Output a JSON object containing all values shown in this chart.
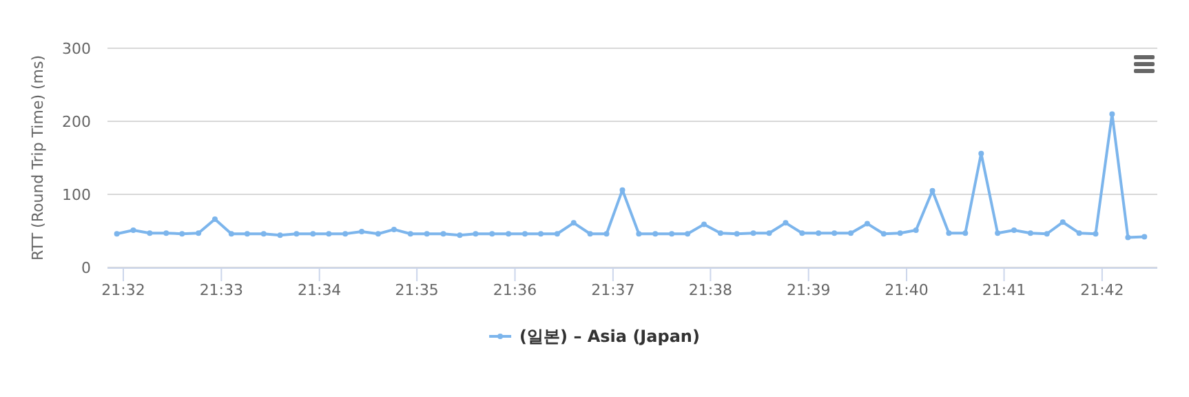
{
  "chart_data": {
    "type": "line",
    "ylabel": "RTT (Round Trip Time) (ms)",
    "xlim": [
      21.5306,
      21.7094
    ],
    "ylim": [
      0,
      300
    ],
    "yticks": [
      0,
      100,
      200,
      300
    ],
    "xticks": [
      {
        "value": 21.5333,
        "label": "21:32"
      },
      {
        "value": 21.55,
        "label": "21:33"
      },
      {
        "value": 21.5667,
        "label": "21:34"
      },
      {
        "value": 21.5833,
        "label": "21:35"
      },
      {
        "value": 21.6,
        "label": "21:36"
      },
      {
        "value": 21.6167,
        "label": "21:37"
      },
      {
        "value": 21.6333,
        "label": "21:38"
      },
      {
        "value": 21.65,
        "label": "21:39"
      },
      {
        "value": 21.6667,
        "label": "21:40"
      },
      {
        "value": 21.6833,
        "label": "21:41"
      },
      {
        "value": 21.7,
        "label": "21:42"
      }
    ],
    "grid": "y",
    "legend": "bottom",
    "marker": "circle",
    "line_style": "solid",
    "x": [
      21.5322,
      21.535,
      21.5378,
      21.5406,
      21.5433,
      21.5461,
      21.5489,
      21.5517,
      21.5544,
      21.5572,
      21.56,
      21.5628,
      21.5656,
      21.5683,
      21.5711,
      21.5739,
      21.5767,
      21.5794,
      21.5822,
      21.585,
      21.5878,
      21.5906,
      21.5933,
      21.5961,
      21.5989,
      21.6017,
      21.6044,
      21.6072,
      21.61,
      21.6128,
      21.6156,
      21.6183,
      21.6211,
      21.6239,
      21.6267,
      21.6294,
      21.6322,
      21.635,
      21.6378,
      21.6406,
      21.6433,
      21.6461,
      21.6489,
      21.6517,
      21.6544,
      21.6572,
      21.66,
      21.6628,
      21.6656,
      21.6683,
      21.6711,
      21.6739,
      21.6767,
      21.6794,
      21.6822,
      21.685,
      21.6878,
      21.6906,
      21.6933,
      21.6961,
      21.6989,
      21.7017,
      21.7044,
      21.7072
    ],
    "series": [
      {
        "name": "(일본) – Asia (Japan)",
        "color": "#7cb5ec",
        "values": [
          46,
          51,
          47,
          47,
          46,
          47,
          66,
          46,
          46,
          46,
          44,
          46,
          46,
          46,
          46,
          49,
          46,
          52,
          46,
          46,
          46,
          44,
          46,
          46,
          46,
          46,
          46,
          46,
          61,
          46,
          46,
          106,
          46,
          46,
          46,
          46,
          59,
          47,
          46,
          47,
          47,
          61,
          47,
          47,
          47,
          47,
          60,
          46,
          47,
          51,
          105,
          47,
          47,
          156,
          47,
          51,
          47,
          46,
          62,
          47,
          46,
          210,
          41,
          42
        ]
      }
    ]
  }
}
